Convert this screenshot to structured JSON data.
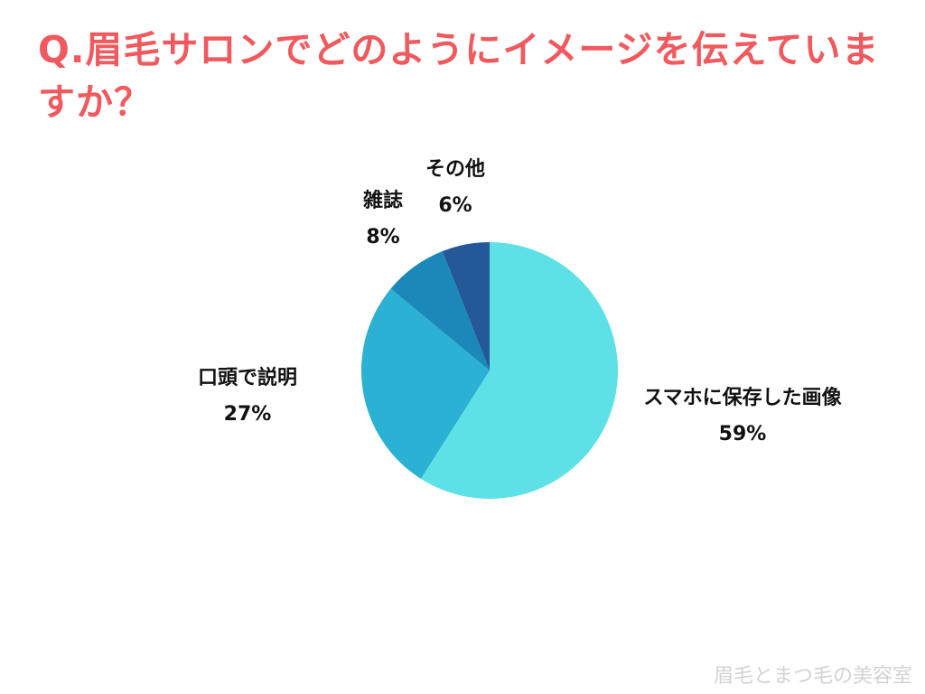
{
  "title": "Q.眉毛サロンでどのようにイメージを伝えていますか？",
  "watermark": "眉毛とまつ毛の美容室",
  "chart_data": {
    "type": "pie",
    "title": "Q.眉毛サロンでどのようにイメージを伝えていますか？",
    "start_angle": "12 o'clock",
    "direction": "clockwise",
    "slices": [
      {
        "label": "スマホに保存した画像",
        "percent_label": "59%",
        "value": 59,
        "color": "#5ee1e6"
      },
      {
        "label": "口頭で説明",
        "percent_label": "27%",
        "value": 27,
        "color": "#2ab1d3"
      },
      {
        "label": "雑誌",
        "percent_label": "8%",
        "value": 8,
        "color": "#1a88b8"
      },
      {
        "label": "その他",
        "percent_label": "6%",
        "value": 6,
        "color": "#245898"
      }
    ]
  }
}
